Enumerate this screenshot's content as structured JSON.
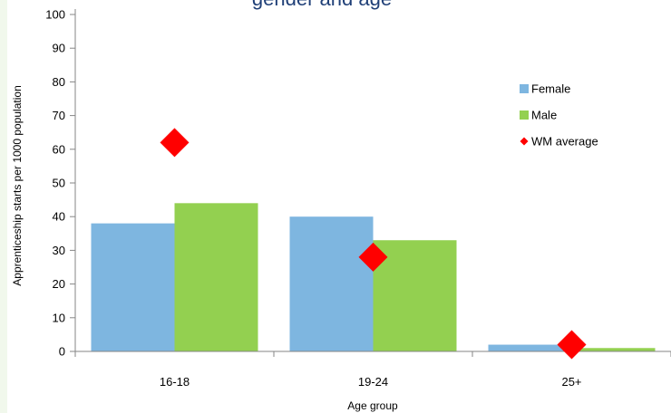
{
  "chart_data": {
    "type": "bar",
    "title": "gender and age",
    "xlabel": "Age group",
    "ylabel": "Apprenticeship starts per 1000 population",
    "categories": [
      "16-18",
      "19-24",
      "25+"
    ],
    "ylim": [
      0,
      100
    ],
    "yticks": [
      0,
      10,
      20,
      30,
      40,
      50,
      60,
      70,
      80,
      90,
      100
    ],
    "grid": false,
    "legend_position": "right",
    "series": [
      {
        "name": "Female",
        "type": "bar",
        "color": "#7eb6e0",
        "values": [
          38,
          40,
          2
        ]
      },
      {
        "name": "Male",
        "type": "bar",
        "color": "#93d050",
        "values": [
          44,
          33,
          1
        ]
      },
      {
        "name": "WM average",
        "type": "scatter",
        "marker": "diamond",
        "color": "#ff0000",
        "values": [
          62,
          28,
          2
        ]
      }
    ]
  }
}
